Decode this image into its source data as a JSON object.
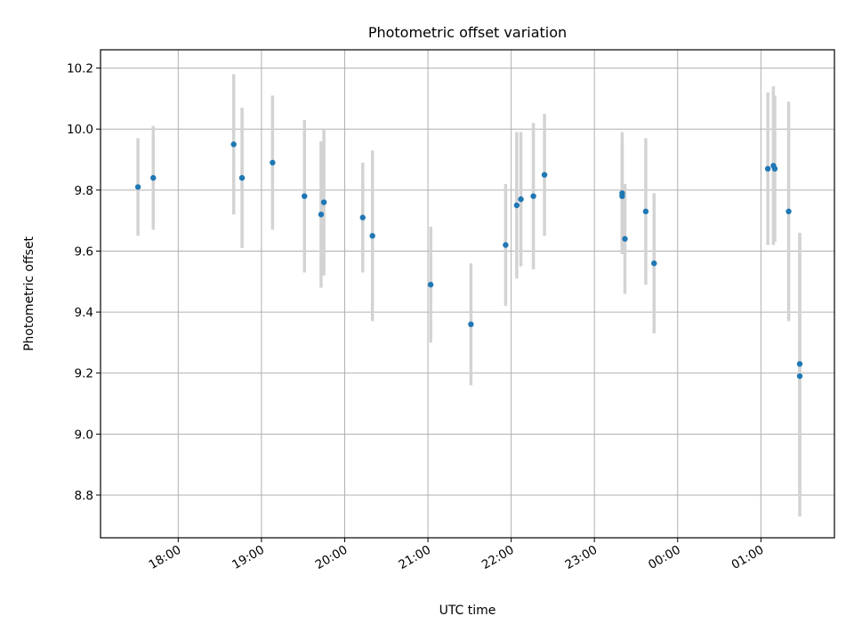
{
  "chart_data": {
    "type": "scatter",
    "title": "Photometric offset variation",
    "xlabel": "UTC time",
    "ylabel": "Photometric offset",
    "x_type": "time",
    "xlim": [
      "17:04",
      "01:53"
    ],
    "ylim": [
      8.66,
      10.26
    ],
    "x_ticks": [
      "18:00",
      "19:00",
      "20:00",
      "21:00",
      "22:00",
      "23:00",
      "00:00",
      "01:00"
    ],
    "y_ticks": [
      "8.8",
      "9.0",
      "9.2",
      "9.4",
      "9.6",
      "9.8",
      "10.0",
      "10.2"
    ],
    "grid": true,
    "legend": null,
    "colors": {
      "point": "#1f77b4",
      "errorbar": "#d3d3d3",
      "grid": "#b0b0b0"
    },
    "series": [
      {
        "points": [
          {
            "x": "17:31",
            "y": 9.81,
            "yerr": 0.16
          },
          {
            "x": "17:42",
            "y": 9.84,
            "yerr": 0.17
          },
          {
            "x": "18:40",
            "y": 9.95,
            "yerr": 0.23
          },
          {
            "x": "18:46",
            "y": 9.84,
            "yerr": 0.23
          },
          {
            "x": "19:08",
            "y": 9.89,
            "yerr": 0.22
          },
          {
            "x": "19:31",
            "y": 9.78,
            "yerr": 0.25
          },
          {
            "x": "19:43",
            "y": 9.72,
            "yerr": 0.24
          },
          {
            "x": "19:45",
            "y": 9.76,
            "yerr": 0.24
          },
          {
            "x": "20:13",
            "y": 9.71,
            "yerr": 0.18
          },
          {
            "x": "20:20",
            "y": 9.65,
            "yerr": 0.28
          },
          {
            "x": "21:02",
            "y": 9.49,
            "yerr": 0.19
          },
          {
            "x": "21:31",
            "y": 9.36,
            "yerr": 0.2
          },
          {
            "x": "21:56",
            "y": 9.62,
            "yerr": 0.2
          },
          {
            "x": "22:04",
            "y": 9.75,
            "yerr": 0.24
          },
          {
            "x": "22:07",
            "y": 9.77,
            "yerr": 0.22
          },
          {
            "x": "22:16",
            "y": 9.78,
            "yerr": 0.24
          },
          {
            "x": "22:24",
            "y": 9.85,
            "yerr": 0.2
          },
          {
            "x": "23:20",
            "y": 9.79,
            "yerr": 0.2
          },
          {
            "x": "23:20",
            "y": 9.78,
            "yerr": 0.18
          },
          {
            "x": "23:22",
            "y": 9.64,
            "yerr": 0.18
          },
          {
            "x": "23:37",
            "y": 9.73,
            "yerr": 0.24
          },
          {
            "x": "23:43",
            "y": 9.56,
            "yerr": 0.23
          },
          {
            "x": "01:05",
            "y": 9.87,
            "yerr": 0.25
          },
          {
            "x": "01:09",
            "y": 9.88,
            "yerr": 0.26
          },
          {
            "x": "01:10",
            "y": 9.87,
            "yerr": 0.24
          },
          {
            "x": "01:20",
            "y": 9.73,
            "yerr": 0.36
          },
          {
            "x": "01:28",
            "y": 9.23,
            "yerr": 0.43
          },
          {
            "x": "01:28",
            "y": 9.19,
            "yerr": 0.46
          }
        ]
      }
    ]
  }
}
